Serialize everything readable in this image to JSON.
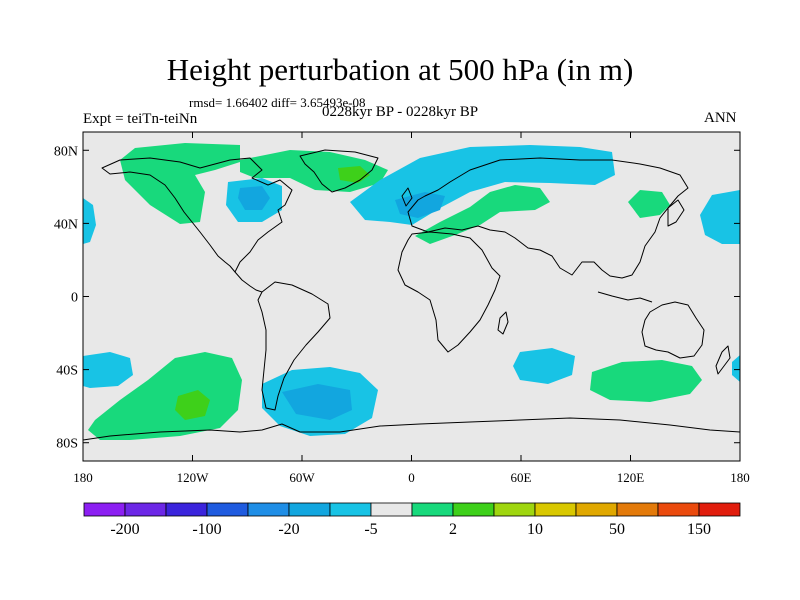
{
  "header": {
    "title": "Height perturbation at 500 hPa (in m)",
    "stats": "rmsd= 1.66402 diff= 3.65493e-08",
    "experiment": "Expt = teiTn-teiNn",
    "period": "0228kyr BP - 0228kyr BP",
    "season": "ANN"
  },
  "axes": {
    "y_labels": [
      "80N",
      "40N",
      "0",
      "40S",
      "80S"
    ],
    "x_labels": [
      "180",
      "120W",
      "60W",
      "0",
      "60E",
      "120E",
      "180"
    ]
  },
  "colorbar": {
    "colors": [
      "#8c1ff2",
      "#6c27e6",
      "#3b24dc",
      "#1f5bdf",
      "#1f8ee6",
      "#12a6df",
      "#18c3e5",
      "#e8e8e8",
      "#18d97c",
      "#3ed01a",
      "#9fd60f",
      "#d9c800",
      "#e0a800",
      "#e37a0a",
      "#ea4a0d",
      "#e11d0d"
    ],
    "labels": [
      "-200",
      "-100",
      "-20",
      "-5",
      "2",
      "10",
      "50",
      "150"
    ]
  },
  "colors": {
    "ocean_bg": "#e8e8e8",
    "neg_light": "#18c3e5",
    "neg_mid": "#12a6df",
    "pos_light": "#18d97c",
    "pos_mid": "#3ed01a",
    "pos_strong": "#9fd60f"
  },
  "chart_data": {
    "type": "heatmap",
    "title": "Height perturbation at 500 hPa (in m)",
    "variable": "500 hPa height perturbation",
    "units": "m",
    "lon_range": [
      -180,
      180
    ],
    "lat_range": [
      -90,
      90
    ],
    "levels": [
      -200,
      -100,
      -20,
      -5,
      2,
      10,
      50,
      150
    ],
    "anomaly_regions": [
      {
        "name": "north-pacific-arctic-positive",
        "lon": [
          -150,
          -100
        ],
        "lat": [
          50,
          85
        ],
        "sign": "positive",
        "level": "2 to 10"
      },
      {
        "name": "canada-negative",
        "lon": [
          -100,
          -80
        ],
        "lat": [
          45,
          65
        ],
        "sign": "negative",
        "level": "-5 to -2"
      },
      {
        "name": "greenland-positive",
        "lon": [
          -55,
          -20
        ],
        "lat": [
          60,
          82
        ],
        "sign": "positive",
        "level": "2 to 10"
      },
      {
        "name": "north-atlantic-europe-negative",
        "lon": [
          -35,
          85
        ],
        "lat": [
          45,
          82
        ],
        "sign": "negative",
        "level": "-5 to -2"
      },
      {
        "name": "mediterranean-central-asia-positive",
        "lon": [
          5,
          80
        ],
        "lat": [
          35,
          52
        ],
        "sign": "positive",
        "level": "2 to 10"
      },
      {
        "name": "east-asia-positive",
        "lon": [
          100,
          120
        ],
        "lat": [
          40,
          55
        ],
        "sign": "positive",
        "level": "2 to 10"
      },
      {
        "name": "north-pacific-negative",
        "lon": [
          155,
          180
        ],
        "lat": [
          30,
          55
        ],
        "sign": "negative",
        "level": "-5 to -2"
      },
      {
        "name": "north-pacific-dateline-negative",
        "lon": [
          -180,
          -175
        ],
        "lat": [
          30,
          50
        ],
        "sign": "negative",
        "level": "-5 to -2"
      },
      {
        "name": "south-pacific-negative",
        "lon": [
          -180,
          -135
        ],
        "lat": [
          -50,
          -33
        ],
        "sign": "negative",
        "level": "-5 to -2"
      },
      {
        "name": "south-pacific-positive",
        "lon": [
          -180,
          -100
        ],
        "lat": [
          -85,
          -35
        ],
        "sign": "positive",
        "level": "2 to 10"
      },
      {
        "name": "drake-passage-negative",
        "lon": [
          -90,
          -20
        ],
        "lat": [
          -82,
          -45
        ],
        "sign": "negative",
        "level": "-20 to -5"
      },
      {
        "name": "indian-ocean-negative",
        "lon": [
          45,
          75
        ],
        "lat": [
          -50,
          -35
        ],
        "sign": "negative",
        "level": "-5 to -2"
      },
      {
        "name": "south-australia-positive",
        "lon": [
          100,
          155
        ],
        "lat": [
          -62,
          -40
        ],
        "sign": "positive",
        "level": "2 to 10"
      },
      {
        "name": "dateline-south-negative",
        "lon": [
          175,
          180
        ],
        "lat": [
          -45,
          -35
        ],
        "sign": "negative",
        "level": "-5 to -2"
      }
    ]
  }
}
